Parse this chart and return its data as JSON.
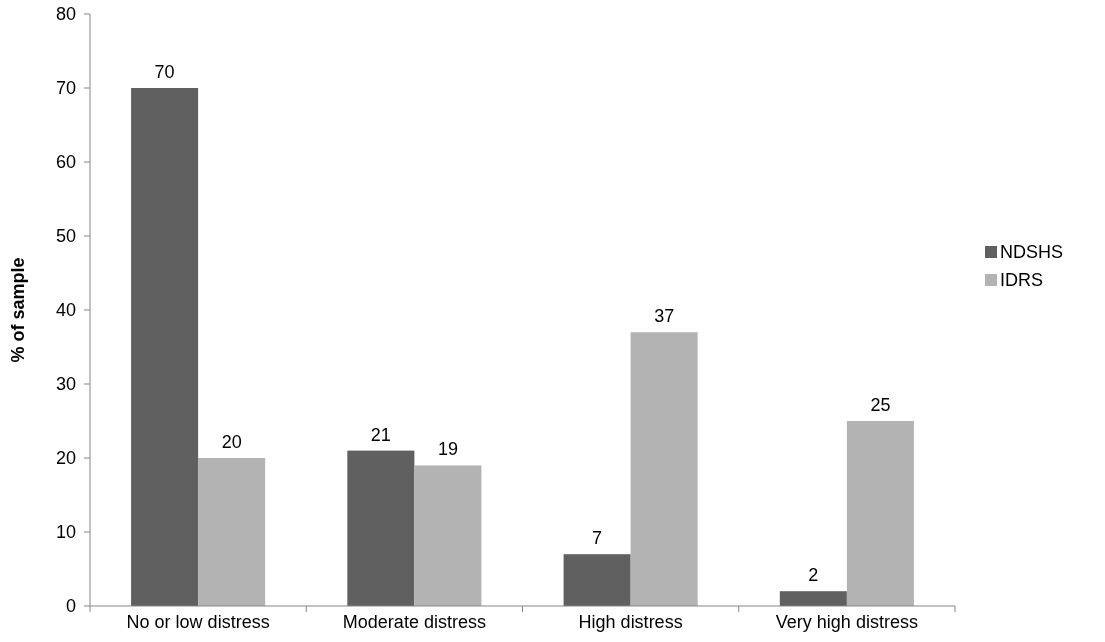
{
  "chart_data": {
    "type": "bar",
    "ylabel": "% of sample",
    "categories": [
      "No or low distress",
      "Moderate distress",
      "High distress",
      "Very high distress"
    ],
    "series": [
      {
        "name": "NDSHS",
        "color": "#606060",
        "values": [
          70,
          21,
          7,
          2
        ]
      },
      {
        "name": "IDRS",
        "color": "#b3b3b3",
        "values": [
          20,
          19,
          37,
          25
        ]
      }
    ],
    "ylim": [
      0,
      80
    ],
    "yticks": [
      0,
      10,
      20,
      30,
      40,
      50,
      60,
      70,
      80
    ],
    "grid": false,
    "legend": "right",
    "data_labels": true
  }
}
